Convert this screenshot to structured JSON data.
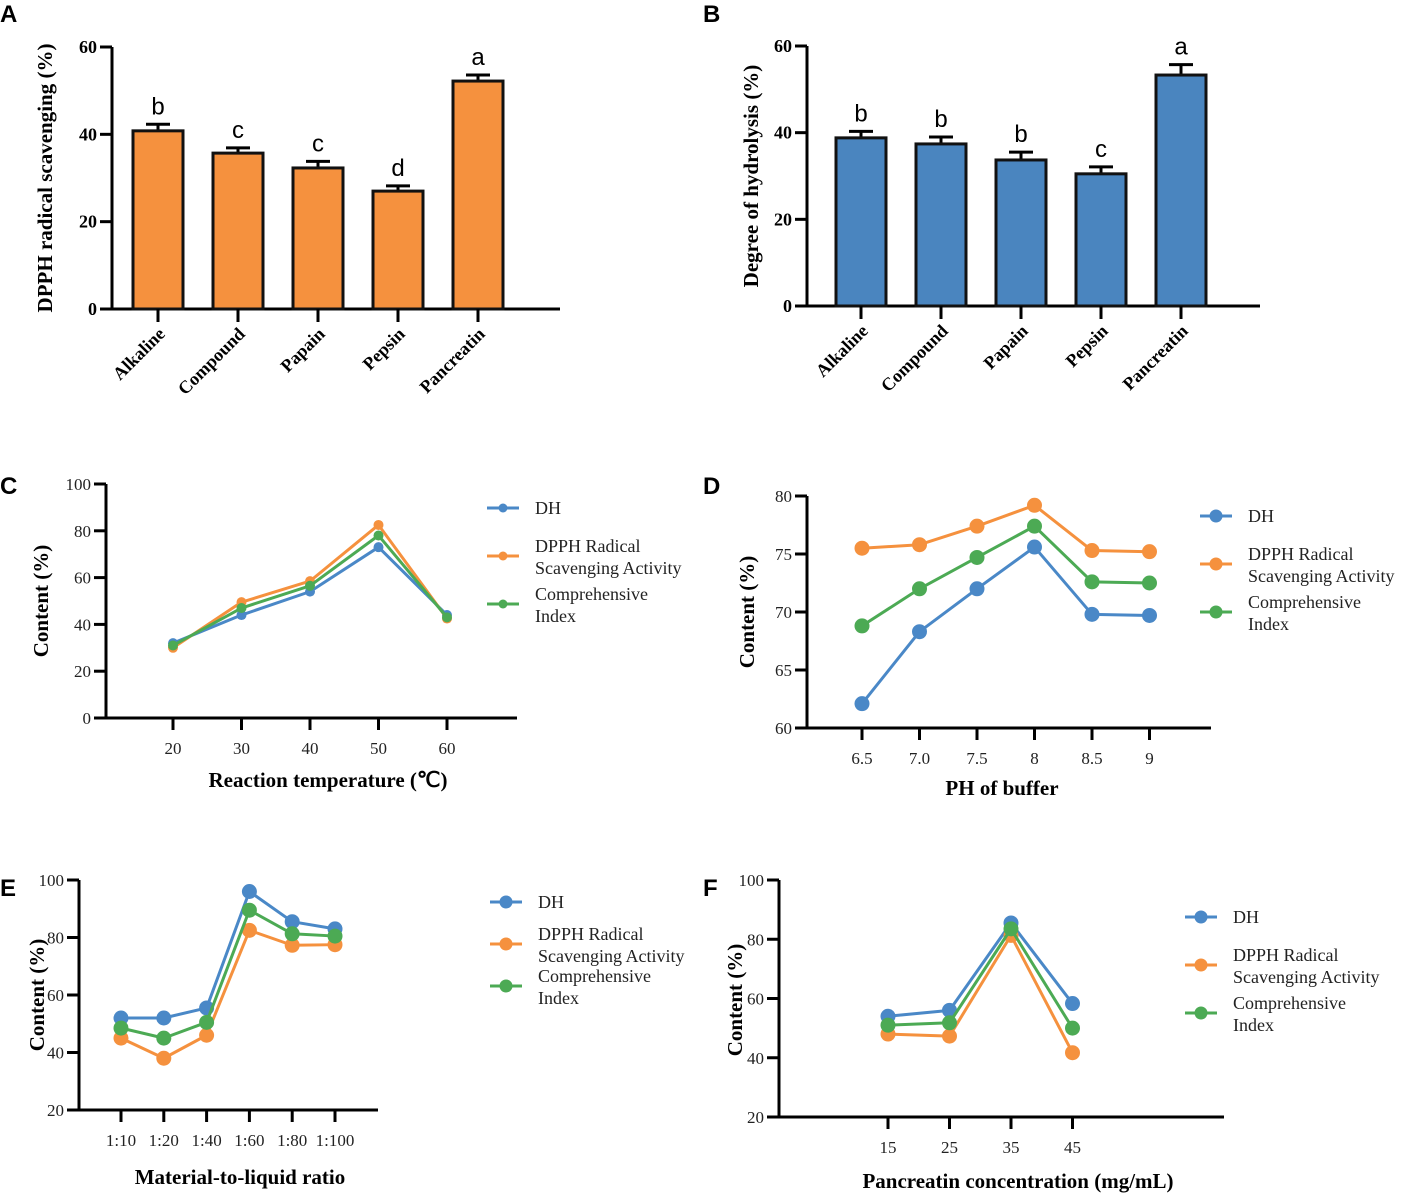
{
  "chart_data": [
    {
      "panel": "A",
      "type": "bar",
      "title": "",
      "xlabel": "",
      "ylabel": "DPPH radical scavenging (%)",
      "ylim": [
        0,
        60
      ],
      "yticks": [
        0,
        20,
        40,
        60
      ],
      "categories": [
        "Alkaline",
        "Compound",
        "Papain",
        "Pepsin",
        "Pancreatin"
      ],
      "values": [
        40.8,
        35.7,
        32.3,
        27.0,
        52.2
      ],
      "errors": [
        1.5,
        1.2,
        1.5,
        1.2,
        1.4
      ],
      "annotations": [
        "b",
        "c",
        "c",
        "d",
        "a"
      ],
      "color": "#F5913E"
    },
    {
      "panel": "B",
      "type": "bar",
      "title": "",
      "xlabel": "",
      "ylabel": "Degree of hydrolysis (%)",
      "ylim": [
        0,
        60
      ],
      "yticks": [
        0,
        20,
        40,
        60
      ],
      "categories": [
        "Alkaline",
        "Compound",
        "Papain",
        "Pepsin",
        "Pancreatin"
      ],
      "values": [
        38.8,
        37.4,
        33.7,
        30.5,
        53.3
      ],
      "errors": [
        1.5,
        1.6,
        1.8,
        1.6,
        2.4
      ],
      "annotations": [
        "b",
        "b",
        "b",
        "c",
        "a"
      ],
      "color": "#4A85BF"
    },
    {
      "panel": "C",
      "type": "line",
      "xlabel": "Reaction temperature (℃)",
      "ylabel": "Content (%)",
      "ylim": [
        0,
        100
      ],
      "yticks": [
        0,
        20,
        40,
        60,
        80,
        100
      ],
      "categories": [
        "20",
        "30",
        "40",
        "50",
        "60"
      ],
      "legend_position": "right",
      "series": [
        {
          "name": "DH",
          "color": "#4A88C7",
          "values": [
            32,
            44,
            54,
            73,
            44
          ]
        },
        {
          "name": "DPPH Radical Scavenging Activity",
          "color": "#F5913E",
          "values": [
            30,
            49.5,
            58.5,
            82.5,
            42.5
          ]
        },
        {
          "name": "Comprehensive Index",
          "color": "#4CAA54",
          "values": [
            31,
            47,
            56.5,
            78,
            43
          ]
        }
      ]
    },
    {
      "panel": "D",
      "type": "line",
      "xlabel": "PH of buffer",
      "ylabel": "Content (%)",
      "ylim": [
        60,
        80
      ],
      "yticks": [
        60,
        65,
        70,
        75,
        80
      ],
      "categories": [
        "6.5",
        "7.0",
        "7.5",
        "8",
        "8.5",
        "9"
      ],
      "legend_position": "right",
      "series": [
        {
          "name": "DH",
          "color": "#4A88C7",
          "values": [
            62.1,
            68.3,
            72.0,
            75.6,
            69.8,
            69.7
          ]
        },
        {
          "name": "DPPH Radical Scavenging Activity",
          "color": "#F5913E",
          "values": [
            75.5,
            75.8,
            77.4,
            79.2,
            75.3,
            75.2
          ]
        },
        {
          "name": "Comprehensive Index",
          "color": "#4CAA54",
          "values": [
            68.8,
            72.0,
            74.7,
            77.4,
            72.6,
            72.5
          ]
        }
      ]
    },
    {
      "panel": "E",
      "type": "line",
      "xlabel": "Material-to-liquid ratio",
      "ylabel": "Content (%)",
      "ylim": [
        20,
        100
      ],
      "yticks": [
        20,
        40,
        60,
        80,
        100
      ],
      "categories": [
        "1:10",
        "1:20",
        "1:40",
        "1:60",
        "1:80",
        "1:100"
      ],
      "legend_position": "right",
      "series": [
        {
          "name": "DH",
          "color": "#4A88C7",
          "values": [
            52,
            52,
            55.5,
            96,
            85.5,
            83
          ]
        },
        {
          "name": "DPPH Radical Scavenging Activity",
          "color": "#F5913E",
          "values": [
            45,
            38,
            46,
            82.5,
            77.3,
            77.5
          ]
        },
        {
          "name": "Comprehensive Index",
          "color": "#4CAA54",
          "values": [
            48.5,
            45,
            50.5,
            89.5,
            81.3,
            80.5
          ]
        }
      ]
    },
    {
      "panel": "F",
      "type": "line",
      "xlabel": "Pancreatin concentration (mg/mL)",
      "ylabel": "Content (%)",
      "ylim": [
        20,
        100
      ],
      "yticks": [
        20,
        40,
        60,
        80,
        100
      ],
      "categories": [
        "15",
        "25",
        "35",
        "45"
      ],
      "legend_position": "right",
      "series": [
        {
          "name": "DH",
          "color": "#4A88C7",
          "values": [
            54,
            56,
            85.5,
            58.3
          ]
        },
        {
          "name": "DPPH Radical Scavenging Activity",
          "color": "#F5913E",
          "values": [
            48,
            47.3,
            81.3,
            41.7
          ]
        },
        {
          "name": "Comprehensive Index",
          "color": "#4CAA54",
          "values": [
            51,
            51.8,
            83.5,
            50
          ]
        }
      ]
    }
  ],
  "legend_lines": {
    "DH": [
      "DH"
    ],
    "DPPH Radical Scavenging Activity": [
      "DPPH Radical",
      "Scavenging Activity"
    ],
    "Comprehensive Index": [
      "Comprehensive",
      " Index"
    ]
  }
}
